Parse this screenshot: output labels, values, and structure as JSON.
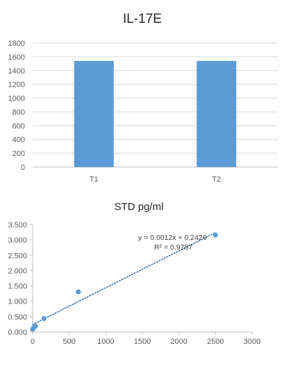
{
  "colors": {
    "bar": "#5b9bd5",
    "point": "#5b9bd5",
    "trendline": "#2e75b6",
    "grid": "#d9d9d9"
  },
  "chart_data": [
    {
      "type": "bar",
      "title": "IL-17E",
      "categories": [
        "T1",
        "T2"
      ],
      "values": [
        1540,
        1540
      ],
      "ylim": [
        0,
        1800
      ],
      "yticks": [
        0,
        200,
        400,
        600,
        800,
        1000,
        1200,
        1400,
        1600,
        1800
      ],
      "ytick_labels": [
        "0",
        "200",
        "400",
        "600",
        "800",
        "1000",
        "1200",
        "1400",
        "1600",
        "1800"
      ],
      "grid": true,
      "legend": "none"
    },
    {
      "type": "scatter",
      "title": "STD pg/ml",
      "x": [
        0,
        9.77,
        39,
        156,
        625,
        2500
      ],
      "y": [
        0.09,
        0.12,
        0.19,
        0.44,
        1.31,
        3.16
      ],
      "xlim": [
        0,
        3000
      ],
      "ylim": [
        0,
        3.5
      ],
      "xticks": [
        0,
        500,
        1000,
        1500,
        2000,
        2500,
        3000
      ],
      "xtick_labels": [
        "0",
        "500",
        "1000",
        "1500",
        "2000",
        "2500",
        "3000"
      ],
      "yticks": [
        0,
        0.5,
        1,
        1.5,
        2,
        2.5,
        3,
        3.5
      ],
      "ytick_labels": [
        "0.000",
        "0.500",
        "1.000",
        "1.500",
        "2.000",
        "2.500",
        "3.000",
        "3.500"
      ],
      "grid": false,
      "trendline": {
        "slope": 0.0012,
        "intercept": 0.2426,
        "equation": "y = 0.0012x + 0.2426",
        "r_squared": "R² = 0.9787"
      }
    }
  ]
}
